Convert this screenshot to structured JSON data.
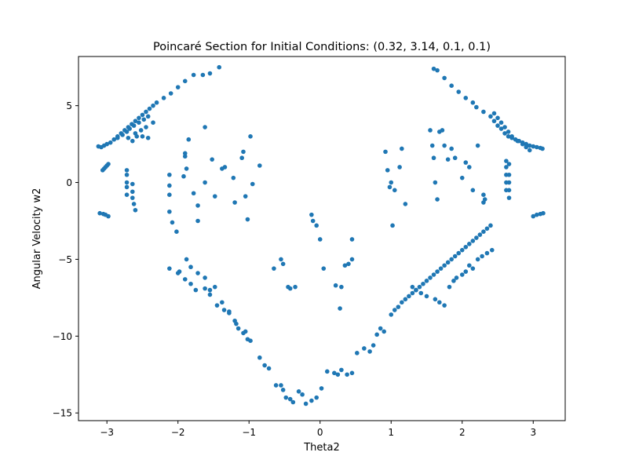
{
  "chart_data": {
    "type": "scatter",
    "title": "Poincaré Section for Initial Conditions: (0.32, 3.14, 0.1, 0.1)",
    "xlabel": "Theta2",
    "ylabel": "Angular Velocity w2",
    "xlim": [
      -3.4,
      3.45
    ],
    "ylim": [
      -15.5,
      8.2
    ],
    "xticks": [
      -3,
      -2,
      -1,
      0,
      1,
      2,
      3
    ],
    "xtick_labels": [
      "−3",
      "−2",
      "−1",
      "0",
      "1",
      "2",
      "3"
    ],
    "yticks": [
      5,
      0,
      -5,
      -10,
      -15
    ],
    "ytick_labels": [
      "5",
      "0",
      "−5",
      "−10",
      "−15"
    ],
    "grid": false,
    "legend": "none",
    "color": "#1f77b4",
    "series": [
      {
        "x": [
          -3.12,
          -3.08,
          -3.04,
          -3.0,
          -2.95,
          -2.9,
          -2.85,
          -2.8,
          -2.75,
          -2.7,
          -2.65,
          -2.6,
          -2.55,
          -2.5,
          -2.45,
          -2.4,
          -2.35,
          -2.3,
          -2.2,
          -2.1,
          -2.0,
          -1.9,
          -1.78,
          -1.65,
          -1.55,
          -1.42,
          -2.85,
          -2.78,
          -2.72,
          -2.68,
          -2.62,
          -2.55,
          -2.48,
          -2.42,
          -2.6,
          -2.52,
          -2.45,
          -2.7,
          -2.64,
          -2.58,
          -2.5,
          -2.42,
          -2.35,
          -3.06,
          -3.04,
          -3.02,
          -3.0,
          -2.98,
          -3.1,
          -3.05,
          -3.02,
          -2.98,
          -2.72,
          -2.72,
          -2.72,
          -2.72,
          -2.72,
          -2.64,
          -2.64,
          -2.64,
          -2.62,
          -2.6,
          -2.12,
          -2.12,
          -2.12,
          -1.88,
          -1.9,
          -1.92,
          -1.78,
          -1.72,
          -1.72,
          -1.62,
          -1.48,
          -1.52,
          -1.38,
          -1.34,
          -1.22,
          -1.2,
          -1.05,
          -1.02,
          -0.98,
          -0.95,
          -1.08,
          -1.1,
          -0.85,
          -1.85,
          -1.62,
          -1.9,
          -2.12,
          -2.08,
          -2.02,
          -1.98,
          -1.88,
          -1.82,
          -1.72,
          -1.62,
          -1.55,
          -1.48,
          -1.38,
          -1.28,
          -1.18,
          -1.08,
          -1.02,
          -2.12,
          -2.0,
          -1.9,
          -1.82,
          -1.75,
          -1.62,
          -1.55,
          -1.45,
          -1.35,
          -1.28,
          -1.2,
          -1.15,
          -1.05,
          -0.98,
          -0.85,
          -0.78,
          -0.72,
          -0.62,
          -0.55,
          -0.52,
          -0.48,
          -0.42,
          -0.38,
          -0.3,
          -0.25,
          -0.2,
          -0.12,
          -0.05,
          0.02,
          0.1,
          0.2,
          0.25,
          0.3,
          0.38,
          0.45,
          -0.65,
          -0.55,
          -0.52,
          -0.45,
          -0.42,
          -0.35,
          -0.12,
          -0.1,
          -0.05,
          0.0,
          0.05,
          0.22,
          0.28,
          0.3,
          0.35,
          0.4,
          0.45,
          0.45,
          0.52,
          0.62,
          0.7,
          0.75,
          0.8,
          0.85,
          0.9,
          1.0,
          1.05,
          1.1,
          1.15,
          1.2,
          1.25,
          1.3,
          1.35,
          1.4,
          1.45,
          1.5,
          1.55,
          1.6,
          1.65,
          1.7,
          1.75,
          1.8,
          1.85,
          1.9,
          1.95,
          2.0,
          2.05,
          2.1,
          2.15,
          2.2,
          2.25,
          2.3,
          2.35,
          2.4,
          1.3,
          1.35,
          1.42,
          1.5,
          1.62,
          1.68,
          1.75,
          1.82,
          1.88,
          1.92,
          2.0,
          2.05,
          2.1,
          2.15,
          2.22,
          2.28,
          2.35,
          2.42,
          0.92,
          0.95,
          1.0,
          1.05,
          1.12,
          1.15,
          1.2,
          1.02,
          0.98,
          1.55,
          1.58,
          1.6,
          1.62,
          1.65,
          1.68,
          1.72,
          1.75,
          1.8,
          1.85,
          1.9,
          2.0,
          2.05,
          2.1,
          2.15,
          2.22,
          2.3,
          2.62,
          2.62,
          2.62,
          2.62,
          2.62,
          2.66,
          2.66,
          2.66,
          2.66,
          2.66,
          2.3,
          2.32,
          1.6,
          1.65,
          1.75,
          1.85,
          1.95,
          2.05,
          2.15,
          2.2,
          2.3,
          2.4,
          2.45,
          2.5,
          2.55,
          2.6,
          2.65,
          2.7,
          2.75,
          2.8,
          2.85,
          2.9,
          2.95,
          3.0,
          3.05,
          3.1,
          3.13,
          2.45,
          2.5,
          2.55,
          2.6,
          2.65,
          2.7,
          2.78,
          2.85,
          2.9,
          2.95,
          3.0,
          3.05,
          3.1,
          3.14
        ],
        "y": [
          2.35,
          2.3,
          2.4,
          2.5,
          2.6,
          2.8,
          3.0,
          3.2,
          3.4,
          3.6,
          3.8,
          4.0,
          4.2,
          4.4,
          4.6,
          4.8,
          5.0,
          5.2,
          5.5,
          5.8,
          6.2,
          6.6,
          7.0,
          7.0,
          7.1,
          7.5,
          2.9,
          3.1,
          3.3,
          3.5,
          3.7,
          3.9,
          4.1,
          4.3,
          3.2,
          3.4,
          3.6,
          2.9,
          2.7,
          3.0,
          3.0,
          2.9,
          3.9,
          0.8,
          0.9,
          1.0,
          1.1,
          1.2,
          -2.0,
          -2.05,
          -2.1,
          -2.2,
          0.8,
          0.5,
          0.0,
          -0.3,
          -0.8,
          -0.1,
          -0.6,
          -1.0,
          -1.4,
          -1.8,
          -0.2,
          0.5,
          -0.8,
          0.9,
          1.7,
          0.4,
          -0.7,
          -1.5,
          -2.5,
          0.0,
          -0.9,
          1.5,
          0.9,
          1.0,
          0.3,
          -1.3,
          -0.9,
          -2.4,
          3.0,
          -0.1,
          2.0,
          1.6,
          1.1,
          2.8,
          3.6,
          1.9,
          -1.9,
          -2.6,
          -3.2,
          -5.8,
          -5.0,
          -5.5,
          -5.9,
          -6.2,
          -7.0,
          -6.8,
          -7.8,
          -8.5,
          -9.2,
          -9.8,
          -10.2,
          -5.6,
          -5.9,
          -6.3,
          -6.6,
          -7.0,
          -6.9,
          -7.3,
          -8.0,
          -8.3,
          -8.4,
          -9.0,
          -9.5,
          -9.7,
          -10.3,
          -11.4,
          -11.9,
          -12.1,
          -13.2,
          -13.2,
          -13.5,
          -14.0,
          -14.1,
          -14.3,
          -13.6,
          -13.8,
          -14.4,
          -14.2,
          -14.0,
          -13.4,
          -12.3,
          -12.4,
          -12.5,
          -12.2,
          -12.5,
          -12.4,
          -5.6,
          -5.0,
          -5.3,
          -6.8,
          -6.9,
          -6.8,
          -2.1,
          -2.5,
          -2.8,
          -3.7,
          -5.6,
          -6.7,
          -8.2,
          -6.8,
          -5.4,
          -5.3,
          -5.0,
          -3.7,
          -11.1,
          -10.8,
          -11.0,
          -10.6,
          -9.9,
          -9.5,
          -9.7,
          -8.6,
          -8.3,
          -8.1,
          -7.8,
          -7.6,
          -7.4,
          -7.2,
          -7.0,
          -6.8,
          -6.6,
          -6.4,
          -6.2,
          -6.0,
          -5.8,
          -5.6,
          -5.4,
          -5.2,
          -5.0,
          -4.8,
          -4.6,
          -4.4,
          -4.2,
          -4.0,
          -3.8,
          -3.6,
          -3.4,
          -3.2,
          -3.0,
          -2.8,
          -6.8,
          -7.0,
          -7.2,
          -7.4,
          -7.6,
          -7.8,
          -8.0,
          -6.8,
          -6.4,
          -6.2,
          -6.0,
          -5.8,
          -5.4,
          -5.6,
          -5.0,
          -4.8,
          -4.6,
          -4.4,
          2.0,
          0.8,
          0.0,
          -0.5,
          1.0,
          2.2,
          -1.4,
          -2.8,
          -0.3,
          3.4,
          2.4,
          1.6,
          0.0,
          -1.1,
          3.3,
          3.4,
          2.4,
          1.5,
          2.2,
          1.6,
          0.3,
          1.3,
          1.0,
          -0.5,
          2.4,
          -1.3,
          1.4,
          1.0,
          0.5,
          0.0,
          -0.5,
          1.2,
          0.5,
          0.0,
          -0.5,
          -1.0,
          -0.8,
          -1.1,
          7.4,
          7.3,
          6.8,
          6.3,
          5.9,
          5.5,
          5.2,
          4.9,
          4.6,
          4.3,
          4.0,
          3.7,
          3.5,
          3.2,
          3.0,
          2.9,
          2.8,
          2.7,
          2.6,
          2.5,
          2.4,
          2.35,
          2.3,
          2.25,
          2.2,
          4.5,
          4.2,
          3.9,
          3.6,
          3.3,
          3.0,
          2.7,
          2.5,
          2.3,
          2.1,
          -2.2,
          -2.1,
          -2.05,
          -2.0
        ]
      }
    ]
  }
}
